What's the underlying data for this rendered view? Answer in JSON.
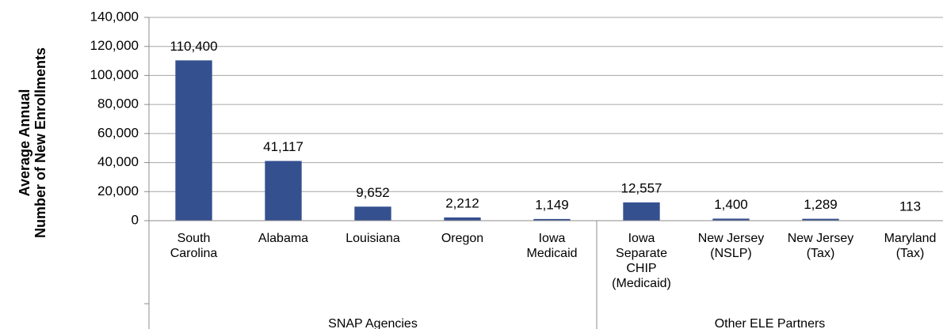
{
  "chart_data": {
    "type": "bar",
    "y_axis_label": [
      "Average Annual",
      "Number of New Enrollments"
    ],
    "categories": [
      [
        "South",
        "Carolina"
      ],
      [
        "Alabama"
      ],
      [
        "Louisiana"
      ],
      [
        "Oregon"
      ],
      [
        "Iowa",
        "Medicaid"
      ],
      [
        "Iowa",
        "Separate",
        "CHIP",
        "(Medicaid)"
      ],
      [
        "New Jersey",
        "(NSLP)"
      ],
      [
        "New Jersey",
        "(Tax)"
      ],
      [
        "Maryland",
        "(Tax)"
      ]
    ],
    "groups": [
      {
        "name": "SNAP Agencies",
        "size": 5
      },
      {
        "name": "Other ELE Partners",
        "size": 4
      }
    ],
    "values": [
      110400,
      41117,
      9652,
      2212,
      1149,
      12557,
      1400,
      1289,
      113
    ],
    "value_labels": [
      "110,400",
      "41,117",
      "9,652",
      "2,212",
      "1,149",
      "12,557",
      "1,400",
      "1,289",
      "113"
    ],
    "color": "#34508f",
    "ylim": [
      0,
      140000
    ],
    "yticks": [
      0,
      {
        "value": 20000,
        "label": "20,000"
      },
      {
        "value": 40000,
        "label": "40,000"
      },
      {
        "value": 60000,
        "label": "60,000"
      },
      {
        "value": 80000,
        "label": "80,000"
      },
      {
        "value": 100000,
        "label": "100,000"
      },
      {
        "value": 120000,
        "label": "120,000"
      },
      {
        "value": 140000,
        "label": "140,000"
      }
    ],
    "grid": true
  }
}
